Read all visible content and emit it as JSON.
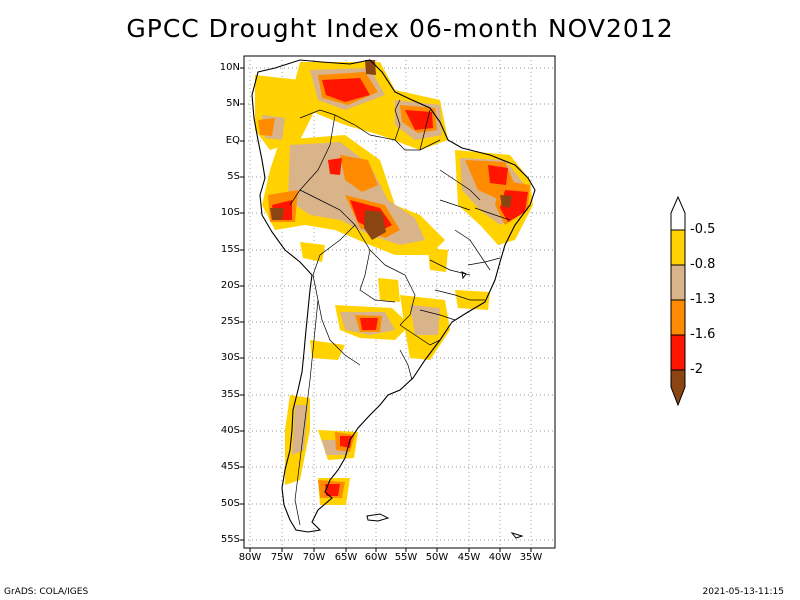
{
  "title": "GPCC Drought Index 06-month NOV2012",
  "footer": {
    "left": "GrADS: COLA/IGES",
    "right": "2021-05-13-11:15"
  },
  "map": {
    "region": "South America",
    "lat_labels": [
      "10N",
      "5N",
      "EQ",
      "5S",
      "10S",
      "15S",
      "20S",
      "25S",
      "30S",
      "35S",
      "40S",
      "45S",
      "50S",
      "55S"
    ],
    "lon_labels": [
      "80W",
      "75W",
      "70W",
      "65W",
      "60W",
      "55W",
      "50W",
      "45W",
      "40W",
      "35W"
    ]
  },
  "legend": {
    "labels": [
      "-0.5",
      "-0.8",
      "-1.3",
      "-1.6",
      "-2"
    ],
    "colors": [
      "#ffffff",
      "#ffd200",
      "#d9b48a",
      "#ff8c00",
      "#ff1500",
      "#8b4513"
    ]
  },
  "colors": {
    "yellow": "#ffd200",
    "tan": "#d9b48a",
    "orange": "#ff8c00",
    "red": "#ff1500",
    "brown": "#8b4513"
  }
}
